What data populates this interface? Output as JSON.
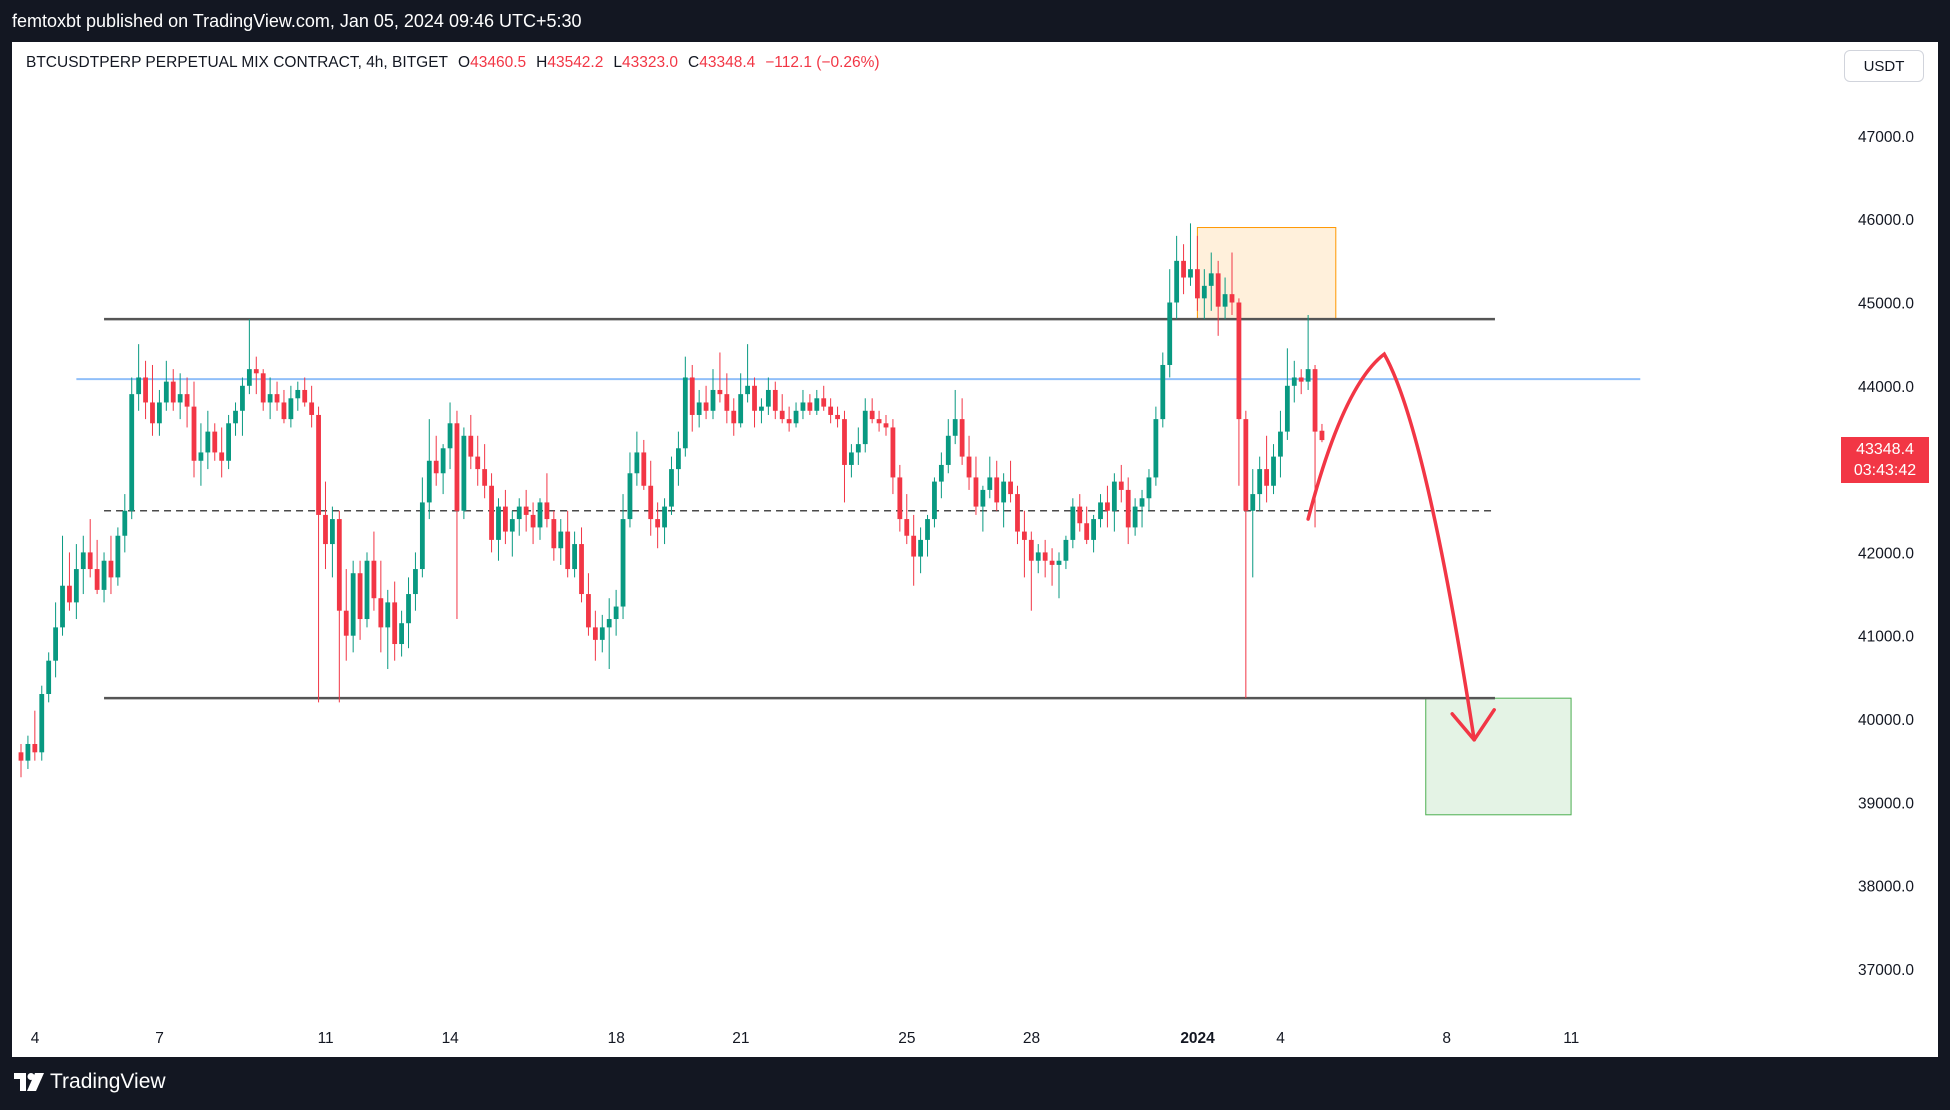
{
  "header": {
    "published_text": "femtoxbt published on TradingView.com, Jan 05, 2024 09:46 UTC+5:30"
  },
  "legend": {
    "symbol": "BTCUSDTPERP PERPETUAL MIX CONTRACT, 4h, BITGET",
    "open_label": "O",
    "open": "43460.5",
    "high_label": "H",
    "high": "43542.2",
    "low_label": "L",
    "low": "43323.0",
    "close_label": "C",
    "close": "43348.4",
    "change": "−112.1 (−0.26%)"
  },
  "currency_button": "USDT",
  "price_tag": {
    "price": "43348.4",
    "countdown": "03:43:42"
  },
  "footer": {
    "brand": "TradingView"
  },
  "colors": {
    "up": "#089981",
    "down": "#f23645",
    "support_line": "#90bff9",
    "orange_zone": "#ff9800",
    "green_zone": "#4caf50",
    "arrow": "#f23645"
  },
  "chart_data": {
    "type": "candlestick",
    "ylim": [
      36500,
      47900
    ],
    "y_ticks": [
      37000,
      38000,
      39000,
      40000,
      41000,
      42000,
      43000,
      44000,
      45000,
      46000,
      47000
    ],
    "y_tick_labels": [
      "37000.0",
      "38000.0",
      "39000.0",
      "40000.0",
      "41000.0",
      "42000.0",
      "43000.0",
      "44000.0",
      "45000.0",
      "46000.0",
      "47000.0"
    ],
    "x_tick_labels": [
      {
        "label": "4",
        "bar": 0
      },
      {
        "label": "7",
        "bar": 18
      },
      {
        "label": "11",
        "bar": 42
      },
      {
        "label": "14",
        "bar": 60
      },
      {
        "label": "18",
        "bar": 84
      },
      {
        "label": "21",
        "bar": 102
      },
      {
        "label": "25",
        "bar": 126
      },
      {
        "label": "28",
        "bar": 144
      },
      {
        "label": "2024",
        "bar": 168
      },
      {
        "label": "4",
        "bar": 180
      },
      {
        "label": "8",
        "bar": 204
      },
      {
        "label": "11",
        "bar": 222
      }
    ],
    "levels": [
      {
        "kind": "resistance",
        "price": 44800,
        "from_bar": 12,
        "to_bar": 213
      },
      {
        "kind": "support",
        "price": 44080,
        "from_bar": 8,
        "to_bar": 234
      },
      {
        "kind": "mid",
        "price": 42500,
        "from_bar": 12,
        "to_bar": 213
      },
      {
        "kind": "range_low",
        "price": 40250,
        "from_bar": 12,
        "to_bar": 213
      }
    ],
    "zones": [
      {
        "kind": "orange",
        "from_bar": 170,
        "to_bar": 190,
        "top": 45900,
        "bottom": 44800
      },
      {
        "kind": "green",
        "from_bar": 203,
        "to_bar": 224,
        "top": 40250,
        "bottom": 38850
      }
    ],
    "forecast_arrow": [
      [
        186,
        42400
      ],
      [
        191,
        44000
      ],
      [
        197,
        44380
      ],
      [
        203,
        43500
      ],
      [
        210,
        39750
      ]
    ],
    "candles": [
      [
        39600,
        39700,
        39300,
        39500
      ],
      [
        39500,
        39800,
        39400,
        39700
      ],
      [
        39700,
        40100,
        39500,
        39600
      ],
      [
        39600,
        40400,
        39500,
        40300
      ],
      [
        40300,
        40800,
        40200,
        40700
      ],
      [
        40700,
        41400,
        40500,
        41100
      ],
      [
        41100,
        42200,
        41000,
        41600
      ],
      [
        41600,
        42000,
        41300,
        41400
      ],
      [
        41400,
        42100,
        41200,
        41800
      ],
      [
        41800,
        42200,
        41500,
        42000
      ],
      [
        42000,
        42400,
        41700,
        41800
      ],
      [
        41800,
        42150,
        41500,
        41550
      ],
      [
        41550,
        42000,
        41400,
        41900
      ],
      [
        41900,
        42200,
        41500,
        41700
      ],
      [
        41700,
        42300,
        41600,
        42200
      ],
      [
        42200,
        42700,
        42000,
        42500
      ],
      [
        42500,
        44100,
        42400,
        43900
      ],
      [
        43900,
        44500,
        43700,
        44100
      ],
      [
        44100,
        44300,
        43600,
        43800
      ],
      [
        43800,
        44250,
        43400,
        43550
      ],
      [
        43550,
        43950,
        43400,
        43800
      ],
      [
        43800,
        44300,
        43700,
        44050
      ],
      [
        44050,
        44200,
        43700,
        43800
      ],
      [
        43800,
        44150,
        43600,
        43900
      ],
      [
        43900,
        44100,
        43500,
        43750
      ],
      [
        43750,
        44050,
        42900,
        43100
      ],
      [
        43100,
        43550,
        42800,
        43200
      ],
      [
        43200,
        43700,
        43000,
        43450
      ],
      [
        43450,
        43550,
        43100,
        43200
      ],
      [
        43200,
        43500,
        42900,
        43100
      ],
      [
        43100,
        43650,
        43000,
        43550
      ],
      [
        43550,
        43800,
        43400,
        43700
      ],
      [
        43700,
        44100,
        43400,
        44000
      ],
      [
        44000,
        44800,
        43900,
        44200
      ],
      [
        44200,
        44350,
        43900,
        44150
      ],
      [
        44150,
        44200,
        43700,
        43800
      ],
      [
        43800,
        44100,
        43600,
        43900
      ],
      [
        43900,
        44050,
        43700,
        43800
      ],
      [
        43800,
        43950,
        43550,
        43600
      ],
      [
        43600,
        44000,
        43500,
        43850
      ],
      [
        43850,
        44050,
        43700,
        43950
      ],
      [
        43950,
        44100,
        43750,
        43800
      ],
      [
        43800,
        44000,
        43500,
        43650
      ],
      [
        43650,
        43750,
        40200,
        42450
      ],
      [
        42450,
        42850,
        41800,
        42100
      ],
      [
        42100,
        42550,
        41700,
        42400
      ],
      [
        42400,
        42500,
        40200,
        41300
      ],
      [
        41300,
        41800,
        40700,
        41000
      ],
      [
        41000,
        41900,
        40800,
        41750
      ],
      [
        41750,
        41900,
        40950,
        41200
      ],
      [
        41200,
        42000,
        41100,
        41900
      ],
      [
        41900,
        42250,
        41300,
        41450
      ],
      [
        41450,
        41900,
        40800,
        41100
      ],
      [
        41100,
        41550,
        40600,
        41400
      ],
      [
        41400,
        41650,
        40700,
        40900
      ],
      [
        40900,
        41300,
        40750,
        41150
      ],
      [
        41150,
        41700,
        40850,
        41500
      ],
      [
        41500,
        42000,
        41300,
        41800
      ],
      [
        41800,
        42900,
        41700,
        42600
      ],
      [
        42600,
        43600,
        42400,
        43100
      ],
      [
        43100,
        43400,
        42800,
        42950
      ],
      [
        42950,
        43300,
        42700,
        43250
      ],
      [
        43250,
        43800,
        43000,
        43550
      ],
      [
        43550,
        43700,
        41200,
        42500
      ],
      [
        42500,
        43500,
        42400,
        43400
      ],
      [
        43400,
        43650,
        43000,
        43150
      ],
      [
        43150,
        43400,
        42800,
        43000
      ],
      [
        43000,
        43300,
        42650,
        42800
      ],
      [
        42800,
        42950,
        42000,
        42150
      ],
      [
        42150,
        42650,
        41900,
        42550
      ],
      [
        42550,
        42750,
        42100,
        42250
      ],
      [
        42250,
        42500,
        41950,
        42400
      ],
      [
        42400,
        42650,
        42200,
        42550
      ],
      [
        42550,
        42750,
        42250,
        42450
      ],
      [
        42450,
        42600,
        42100,
        42300
      ],
      [
        42300,
        42650,
        42150,
        42600
      ],
      [
        42600,
        42950,
        42300,
        42400
      ],
      [
        42400,
        42500,
        41900,
        42050
      ],
      [
        42050,
        42400,
        41850,
        42250
      ],
      [
        42250,
        42500,
        41700,
        41800
      ],
      [
        41800,
        42250,
        41700,
        42100
      ],
      [
        42100,
        42300,
        41400,
        41500
      ],
      [
        41500,
        41750,
        41000,
        41100
      ],
      [
        41100,
        41300,
        40700,
        40950
      ],
      [
        40950,
        41250,
        40800,
        41100
      ],
      [
        41100,
        41450,
        40600,
        41200
      ],
      [
        41200,
        41550,
        41000,
        41350
      ],
      [
        41350,
        42700,
        41200,
        42400
      ],
      [
        42400,
        43200,
        42300,
        42950
      ],
      [
        42950,
        43450,
        42800,
        43200
      ],
      [
        43200,
        43350,
        42750,
        42800
      ],
      [
        42800,
        43100,
        42200,
        42400
      ],
      [
        42400,
        42600,
        42050,
        42300
      ],
      [
        42300,
        42650,
        42100,
        42550
      ],
      [
        42550,
        43150,
        42450,
        43000
      ],
      [
        43000,
        43450,
        42800,
        43250
      ],
      [
        43250,
        44350,
        43150,
        44100
      ],
      [
        44100,
        44250,
        43450,
        43650
      ],
      [
        43650,
        43950,
        43500,
        43800
      ],
      [
        43800,
        44000,
        43600,
        43700
      ],
      [
        43700,
        44200,
        43600,
        43950
      ],
      [
        43950,
        44400,
        43800,
        43900
      ],
      [
        43900,
        44150,
        43550,
        43700
      ],
      [
        43700,
        43850,
        43400,
        43550
      ],
      [
        43550,
        44150,
        43500,
        43900
      ],
      [
        43900,
        44500,
        43800,
        44000
      ],
      [
        44000,
        44100,
        43500,
        43700
      ],
      [
        43700,
        43850,
        43550,
        43750
      ],
      [
        43750,
        44100,
        43650,
        43950
      ],
      [
        43950,
        44050,
        43600,
        43700
      ],
      [
        43700,
        43900,
        43550,
        43600
      ],
      [
        43600,
        43750,
        43450,
        43550
      ],
      [
        43550,
        43800,
        43500,
        43700
      ],
      [
        43700,
        43950,
        43600,
        43800
      ],
      [
        43800,
        43900,
        43650,
        43700
      ],
      [
        43700,
        43950,
        43650,
        43850
      ],
      [
        43850,
        44000,
        43700,
        43750
      ],
      [
        43750,
        43850,
        43550,
        43650
      ],
      [
        43650,
        43750,
        43500,
        43600
      ],
      [
        43600,
        43700,
        42600,
        43050
      ],
      [
        43050,
        43300,
        42900,
        43200
      ],
      [
        43200,
        43500,
        43050,
        43300
      ],
      [
        43300,
        43850,
        43200,
        43700
      ],
      [
        43700,
        43850,
        43550,
        43600
      ],
      [
        43600,
        43700,
        43450,
        43550
      ],
      [
        43550,
        43650,
        43400,
        43500
      ],
      [
        43500,
        43600,
        42700,
        42900
      ],
      [
        42900,
        43050,
        42250,
        42400
      ],
      [
        42400,
        42700,
        42100,
        42200
      ],
      [
        42200,
        42450,
        41600,
        41950
      ],
      [
        41950,
        42300,
        41750,
        42150
      ],
      [
        42150,
        42450,
        41950,
        42400
      ],
      [
        42400,
        42900,
        42300,
        42850
      ],
      [
        42850,
        43200,
        42650,
        43050
      ],
      [
        43050,
        43600,
        42950,
        43400
      ],
      [
        43400,
        43950,
        43300,
        43600
      ],
      [
        43600,
        43850,
        43050,
        43150
      ],
      [
        43150,
        43400,
        42750,
        42900
      ],
      [
        42900,
        43150,
        42450,
        42550
      ],
      [
        42550,
        42800,
        42250,
        42750
      ],
      [
        42750,
        43150,
        42650,
        42900
      ],
      [
        42900,
        43100,
        42500,
        42600
      ],
      [
        42600,
        42950,
        42300,
        42850
      ],
      [
        42850,
        43100,
        42600,
        42700
      ],
      [
        42700,
        42800,
        42100,
        42250
      ],
      [
        42250,
        42500,
        41700,
        42150
      ],
      [
        42150,
        42250,
        41300,
        41900
      ],
      [
        41900,
        42100,
        41750,
        42000
      ],
      [
        42000,
        42150,
        41700,
        41900
      ],
      [
        41900,
        42050,
        41600,
        41850
      ],
      [
        41850,
        42000,
        41450,
        41900
      ],
      [
        41900,
        42200,
        41800,
        42150
      ],
      [
        42150,
        42650,
        42050,
        42550
      ],
      [
        42550,
        42700,
        42250,
        42350
      ],
      [
        42350,
        42550,
        42100,
        42150
      ],
      [
        42150,
        42450,
        42000,
        42400
      ],
      [
        42400,
        42700,
        42300,
        42600
      ],
      [
        42600,
        42800,
        42300,
        42500
      ],
      [
        42500,
        42950,
        42250,
        42850
      ],
      [
        42850,
        43050,
        42600,
        42750
      ],
      [
        42750,
        42900,
        42100,
        42300
      ],
      [
        42300,
        42650,
        42200,
        42550
      ],
      [
        42550,
        42750,
        42300,
        42650
      ],
      [
        42650,
        43000,
        42500,
        42900
      ],
      [
        42900,
        43750,
        42800,
        43600
      ],
      [
        43600,
        44400,
        43500,
        44250
      ],
      [
        44250,
        45400,
        44100,
        45000
      ],
      [
        45000,
        45800,
        44800,
        45500
      ],
      [
        45500,
        45700,
        45100,
        45300
      ],
      [
        45300,
        45950,
        45200,
        45400
      ],
      [
        45400,
        45800,
        44900,
        45050
      ],
      [
        45050,
        45400,
        44800,
        45200
      ],
      [
        45200,
        45600,
        44900,
        45350
      ],
      [
        45350,
        45500,
        44600,
        44950
      ],
      [
        44950,
        45300,
        44800,
        45100
      ],
      [
        45100,
        45600,
        44850,
        45000
      ],
      [
        45000,
        45050,
        42800,
        43600
      ],
      [
        43600,
        43700,
        40250,
        42500
      ],
      [
        42500,
        43000,
        41700,
        42700
      ],
      [
        42700,
        43150,
        42500,
        43000
      ],
      [
        43000,
        43400,
        42600,
        42800
      ],
      [
        42800,
        43300,
        42700,
        43150
      ],
      [
        43150,
        43700,
        42900,
        43450
      ],
      [
        43450,
        44450,
        43350,
        44000
      ],
      [
        44000,
        44300,
        43800,
        44100
      ],
      [
        44100,
        44200,
        43900,
        44050
      ],
      [
        44050,
        44850,
        43950,
        44200
      ],
      [
        44200,
        44250,
        42300,
        43450
      ],
      [
        43460.5,
        43542.2,
        43323,
        43348.4
      ]
    ]
  }
}
